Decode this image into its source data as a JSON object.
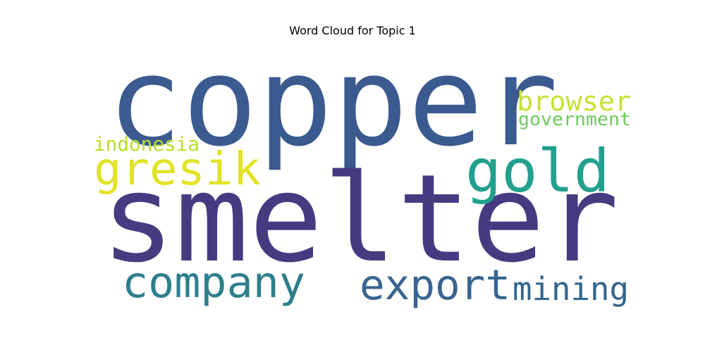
{
  "chart_data": {
    "type": "wordcloud",
    "title": "Word Cloud for Topic 1",
    "words": [
      {
        "text": "copper",
        "weight": 1.0,
        "color": "#3b5a8f"
      },
      {
        "text": "smelter",
        "weight": 0.98,
        "color": "#463a80"
      },
      {
        "text": "gold",
        "weight": 0.45,
        "color": "#21a08d"
      },
      {
        "text": "gresik",
        "weight": 0.38,
        "color": "#e2e325"
      },
      {
        "text": "company",
        "weight": 0.34,
        "color": "#2e7f8c"
      },
      {
        "text": "export",
        "weight": 0.33,
        "color": "#38648f"
      },
      {
        "text": "mining",
        "weight": 0.27,
        "color": "#33658c"
      },
      {
        "text": "browser",
        "weight": 0.22,
        "color": "#c5e136"
      },
      {
        "text": "indonesia",
        "weight": 0.2,
        "color": "#b6dd2b"
      },
      {
        "text": "government",
        "weight": 0.17,
        "color": "#6ecb5c"
      }
    ]
  }
}
